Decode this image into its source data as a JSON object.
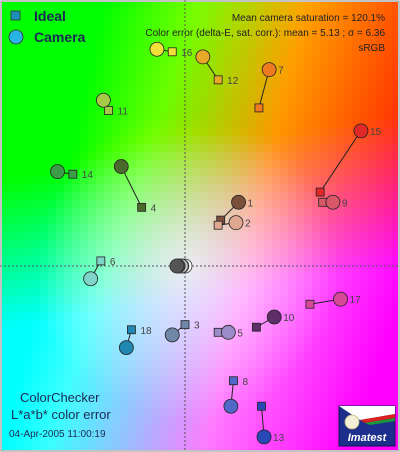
{
  "legend": {
    "ideal_label": "Ideal",
    "camera_label": "Camera",
    "ideal_color": "#1a8fb8",
    "camera_color": "#2ab4e6"
  },
  "stats": {
    "line1": "Mean camera saturation = 120.1%",
    "line2": "Color error (delta-E, sat. corr.):  mean = 5.13 ;  σ = 6.36",
    "line3": "sRGB"
  },
  "footer": {
    "title": "ColorChecker",
    "subtitle": "L*a*b* color error",
    "timestamp": "04-Apr-2005 11:00:19",
    "logo_text": "Imatest"
  },
  "chart_data": {
    "type": "scatter",
    "title": "ColorChecker",
    "subtitle": "L*a*b* color error",
    "xlabel": "",
    "ylabel": "",
    "grid": false,
    "legend_position": "top-left",
    "xlim": [
      -80,
      80
    ],
    "ylim": [
      -80,
      100
    ],
    "series": [
      {
        "name": "Ideal"
      },
      {
        "name": "Camera"
      }
    ],
    "patches": [
      {
        "id": "1",
        "ideal": [
          14,
          18
        ],
        "camera": [
          21,
          25
        ],
        "color": "#7a4f3c"
      },
      {
        "id": "2",
        "ideal": [
          13,
          16
        ],
        "camera": [
          20,
          17
        ],
        "color": "#e0a890"
      },
      {
        "id": "3",
        "ideal": [
          0,
          -23
        ],
        "camera": [
          -5,
          -27
        ],
        "color": "#6f86a6"
      },
      {
        "id": "4",
        "ideal": [
          -17,
          23
        ],
        "camera": [
          -25,
          39
        ],
        "color": "#4a6a2c"
      },
      {
        "id": "5",
        "ideal": [
          13,
          -26
        ],
        "camera": [
          17,
          -26
        ],
        "color": "#9c8cc8"
      },
      {
        "id": "6",
        "ideal": [
          -33,
          2
        ],
        "camera": [
          -37,
          -5
        ],
        "color": "#7fd3c8"
      },
      {
        "id": "7",
        "ideal": [
          29,
          62
        ],
        "camera": [
          33,
          77
        ],
        "color": "#ee7a22"
      },
      {
        "id": "8",
        "ideal": [
          19,
          -45
        ],
        "camera": [
          18,
          -55
        ],
        "color": "#5068c8"
      },
      {
        "id": "9",
        "ideal": [
          54,
          25
        ],
        "camera": [
          58,
          25
        ],
        "color": "#d85868"
      },
      {
        "id": "10",
        "ideal": [
          28,
          -24
        ],
        "camera": [
          35,
          -20
        ],
        "color": "#5e2e68"
      },
      {
        "id": "11",
        "ideal": [
          -30,
          61
        ],
        "camera": [
          -32,
          65
        ],
        "color": "#a8c84a"
      },
      {
        "id": "12",
        "ideal": [
          13,
          73
        ],
        "camera": [
          7,
          82
        ],
        "color": "#e8a828"
      },
      {
        "id": "13",
        "ideal": [
          30,
          -55
        ],
        "camera": [
          31,
          -67
        ],
        "color": "#2848b8"
      },
      {
        "id": "14",
        "ideal": [
          -44,
          36
        ],
        "camera": [
          -50,
          37
        ],
        "color": "#3c9c48"
      },
      {
        "id": "15",
        "ideal": [
          53,
          29
        ],
        "camera": [
          69,
          53
        ],
        "color": "#e02828"
      },
      {
        "id": "16",
        "ideal": [
          -5,
          84
        ],
        "camera": [
          -11,
          85
        ],
        "color": "#f0e038"
      },
      {
        "id": "17",
        "ideal": [
          49,
          -15
        ],
        "camera": [
          61,
          -13
        ],
        "color": "#d84898"
      },
      {
        "id": "18",
        "ideal": [
          -21,
          -25
        ],
        "camera": [
          -23,
          -32
        ],
        "color": "#2088b0"
      }
    ],
    "neutral_patches": [
      {
        "ideal": [
          0,
          0
        ],
        "camera": [
          0,
          0
        ],
        "color": "#ffffff"
      },
      {
        "ideal": [
          0,
          0
        ],
        "camera": [
          -1,
          0
        ],
        "color": "#e6e6e6"
      },
      {
        "ideal": [
          0,
          0
        ],
        "camera": [
          -1,
          0
        ],
        "color": "#c2c2c2"
      },
      {
        "ideal": [
          0,
          0
        ],
        "camera": [
          -2,
          0
        ],
        "color": "#a0a0a0"
      },
      {
        "ideal": [
          0,
          0
        ],
        "camera": [
          -2,
          0
        ],
        "color": "#7a7a7a"
      },
      {
        "ideal": [
          0,
          0
        ],
        "camera": [
          -2,
          0
        ],
        "color": "#555555"
      }
    ]
  }
}
